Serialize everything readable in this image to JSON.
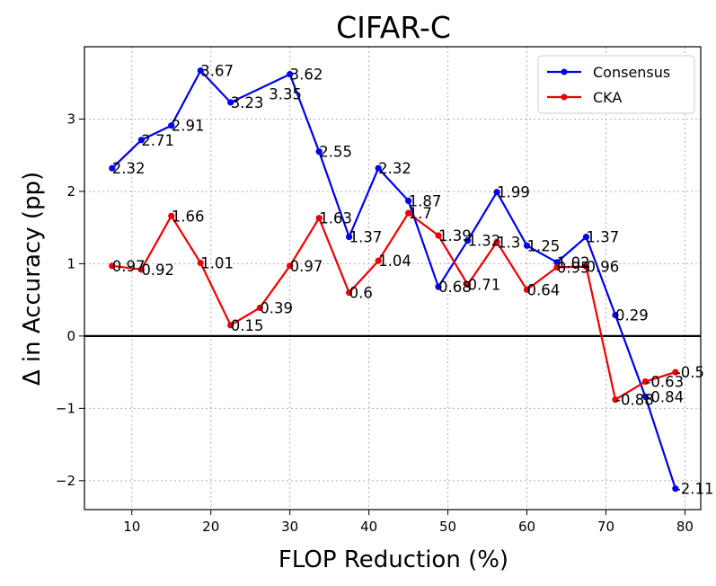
{
  "chart_data": {
    "type": "line",
    "title": "CIFAR-C",
    "xlabel": "FLOP Reduction (%)",
    "ylabel": "Δ in Accuracy (pp)",
    "xlim": [
      4,
      82
    ],
    "ylim": [
      -2.4,
      4.0
    ],
    "xticks": [
      10,
      20,
      30,
      40,
      50,
      60,
      70,
      80
    ],
    "yticks": [
      -2,
      -1,
      0,
      1,
      2,
      3
    ],
    "ytick_labels": [
      "−2",
      "−1",
      "0",
      "1",
      "2",
      "3"
    ],
    "grid": true,
    "zero_line": true,
    "legend": "top-right",
    "series": [
      {
        "name": "Consensus",
        "color": "#0000ee",
        "x": [
          7.5,
          11.2,
          15.0,
          18.7,
          22.5,
          30.0,
          33.7,
          37.5,
          41.2,
          45.0,
          48.8,
          52.5,
          56.2,
          60.0,
          63.8,
          67.5,
          71.2,
          75.0,
          78.8
        ],
        "y": [
          2.32,
          2.71,
          2.91,
          3.67,
          3.23,
          3.62,
          2.55,
          1.37,
          2.32,
          1.87,
          0.68,
          1.32,
          1.99,
          1.25,
          1.02,
          1.37,
          0.29,
          -0.84,
          -2.11
        ],
        "labels": [
          "2.32",
          "2.71",
          "2.91",
          "3.67",
          "3.23",
          "3.62",
          "2.55",
          "1.37",
          "2.32",
          "1.87",
          "0.68",
          "1.32",
          "1.99",
          "1.25",
          "1.02",
          "1.37",
          "0.29",
          "-0.84",
          "-2.11"
        ],
        "extra_labels": [
          {
            "x": 26.2,
            "y": 3.35,
            "text": "3.35"
          }
        ]
      },
      {
        "name": "CKA",
        "color": "#ee0000",
        "x": [
          7.5,
          11.2,
          15.0,
          18.7,
          22.5,
          26.2,
          30.0,
          33.7,
          37.5,
          41.2,
          45.0,
          48.8,
          52.5,
          56.2,
          60.0,
          63.8,
          67.5,
          71.2,
          75.0,
          78.8
        ],
        "y": [
          0.97,
          0.92,
          1.66,
          1.01,
          0.15,
          0.39,
          0.97,
          1.63,
          0.6,
          1.04,
          1.7,
          1.39,
          0.71,
          1.3,
          0.64,
          0.95,
          0.96,
          -0.88,
          -0.63,
          -0.5
        ],
        "labels": [
          "0.97",
          "0.92",
          "1.66",
          "1.01",
          "0.15",
          "0.39",
          "0.97",
          "1.63",
          "0.6",
          "1.04",
          "1.7",
          "1.39",
          "0.71",
          "1.3",
          "0.64",
          "0.95",
          "0.96",
          "-0.88",
          "-0.63",
          "-0.5"
        ]
      }
    ]
  }
}
